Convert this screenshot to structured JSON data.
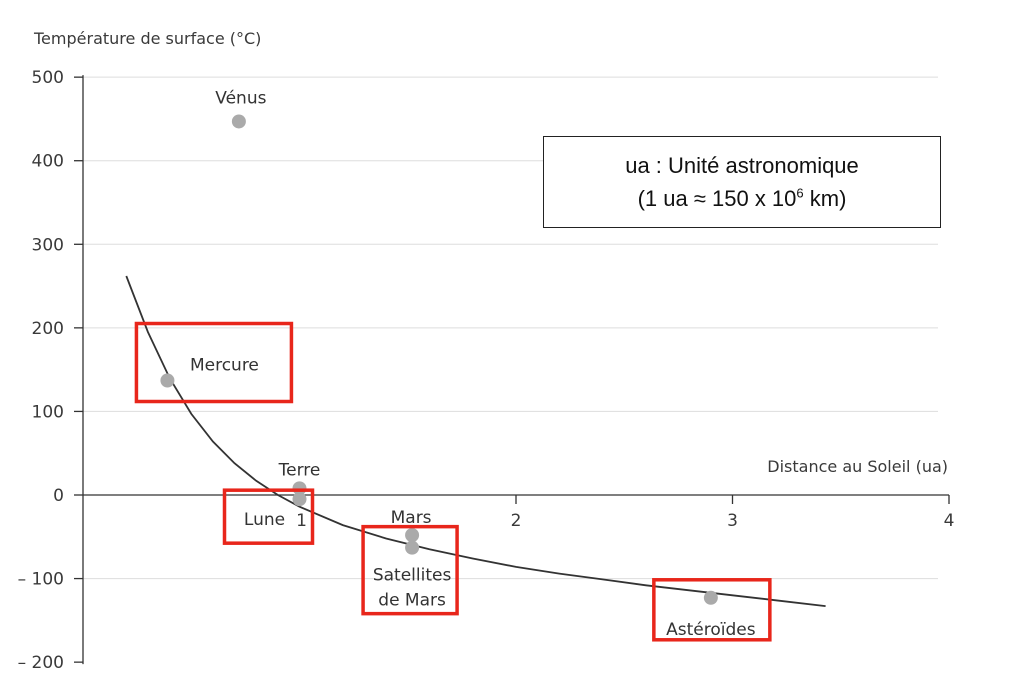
{
  "chart_data": {
    "type": "scatter",
    "title": "",
    "ylabel": "Température de surface (°C)",
    "xlabel": "Distance au Soleil (ua)",
    "xlim": [
      0,
      4
    ],
    "ylim": [
      -200,
      500
    ],
    "x_ticks": [
      "1",
      "2",
      "3",
      "4"
    ],
    "y_ticks": [
      "500",
      "400",
      "300",
      "200",
      "100",
      "0",
      "– 100",
      "– 200"
    ],
    "grid": true,
    "points": [
      {
        "label": "Vénus",
        "x": 0.72,
        "y": 447,
        "highlighted": false
      },
      {
        "label": "Mercure",
        "x": 0.39,
        "y": 137,
        "highlighted": true
      },
      {
        "label": "Terre",
        "x": 1.0,
        "y": 8,
        "highlighted": false
      },
      {
        "label": "Lune",
        "x": 1.0,
        "y": -5,
        "highlighted": true
      },
      {
        "label": "Mars",
        "x": 1.52,
        "y": -48,
        "highlighted": false
      },
      {
        "label": "Satellites de Mars",
        "lines": [
          "Satellites",
          "de Mars"
        ],
        "x": 1.52,
        "y": -63,
        "highlighted": true
      },
      {
        "label": "Astéroïdes",
        "x": 2.9,
        "y": -123,
        "highlighted": true
      }
    ],
    "curve": [
      [
        0.2,
        262
      ],
      [
        0.3,
        195
      ],
      [
        0.4,
        140
      ],
      [
        0.5,
        97
      ],
      [
        0.6,
        64
      ],
      [
        0.7,
        38
      ],
      [
        0.8,
        17
      ],
      [
        0.9,
        0
      ],
      [
        1.0,
        -14
      ],
      [
        1.2,
        -36
      ],
      [
        1.4,
        -52
      ],
      [
        1.6,
        -65
      ],
      [
        1.8,
        -76
      ],
      [
        2.0,
        -86
      ],
      [
        2.2,
        -94
      ],
      [
        2.4,
        -101
      ],
      [
        2.6,
        -108
      ],
      [
        2.8,
        -114
      ],
      [
        3.0,
        -120
      ],
      [
        3.2,
        -126
      ],
      [
        3.43,
        -133
      ]
    ],
    "colors": {
      "point": "#aaaaaa",
      "curve": "#333333",
      "highlight": "#e8261b",
      "grid": "#dddddd",
      "axis": "#333333"
    }
  },
  "legend": {
    "line1": "ua : Unité astronomique",
    "line2_prefix": "(1 ua ≈ 150 x 10",
    "line2_exp": "6",
    "line2_suffix": " km)"
  }
}
